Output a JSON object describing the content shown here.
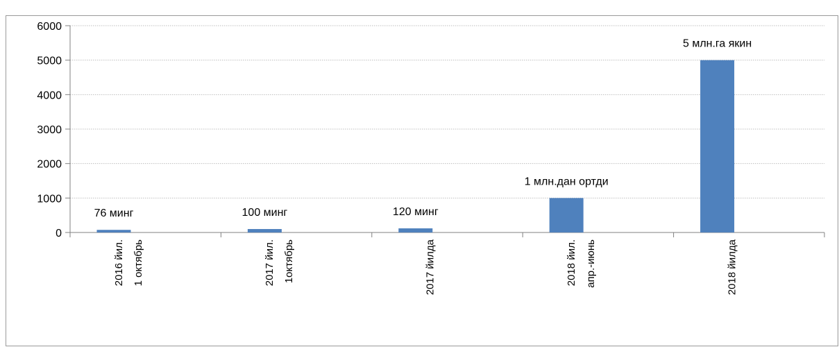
{
  "chart_data": {
    "type": "bar",
    "title": "",
    "categories": [
      [
        "2016 йил.",
        "1 октябрь"
      ],
      [
        "2017 йил.",
        "1октябрь"
      ],
      [
        "2017 йилда"
      ],
      [
        "2018 йил.",
        "апр.-июнь"
      ],
      [
        "2018 йилда"
      ]
    ],
    "values": [
      76,
      100,
      120,
      1000,
      5000
    ],
    "data_labels": [
      "76 минг",
      "100 минг",
      "120 минг",
      "1 млн.дан ортди",
      "5 млн.га якин"
    ],
    "yticks": [
      "0",
      "1000",
      "2000",
      "3000",
      "4000",
      "5000",
      "6000"
    ],
    "ylim": [
      0,
      6000
    ],
    "grid": true,
    "legend": "none",
    "bar_color": "#4f81bd",
    "grid_color": "#bfbfbf",
    "axis_color": "#808080"
  }
}
